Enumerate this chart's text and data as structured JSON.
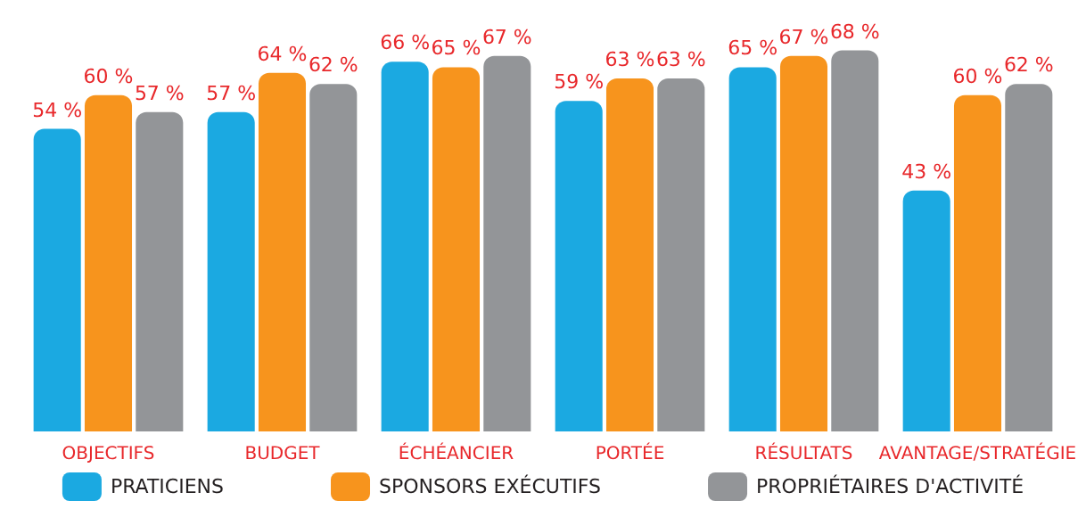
{
  "chart_data": {
    "type": "bar",
    "categories": [
      "OBJECTIFS",
      "BUDGET",
      "ÉCHÉANCIER",
      "PORTÉE",
      "RÉSULTATS",
      "AVANTAGE/STRATÉGIE"
    ],
    "series": [
      {
        "name": "PRATICIENS",
        "color": "#1ba9e1",
        "values": [
          54,
          57,
          66,
          59,
          65,
          43
        ],
        "value_labels": [
          "54 %",
          "57 %",
          "66 %",
          "59 %",
          "65 %",
          "43 %"
        ]
      },
      {
        "name": "SPONSORS EXÉCUTIFS",
        "color": "#f7941d",
        "values": [
          60,
          64,
          65,
          63,
          67,
          60
        ],
        "value_labels": [
          "60 %",
          "64 %",
          "65 %",
          "63 %",
          "67 %",
          "60 %"
        ]
      },
      {
        "name": "PROPRIÉTAIRES D'ACTIVITÉ",
        "color": "#939598",
        "values": [
          57,
          62,
          67,
          63,
          68,
          62
        ],
        "value_labels": [
          "57 %",
          "62 %",
          "67 %",
          "63 %",
          "68 %",
          "62 %"
        ]
      }
    ],
    "tick_labels": "x",
    "legend": "bottom"
  }
}
